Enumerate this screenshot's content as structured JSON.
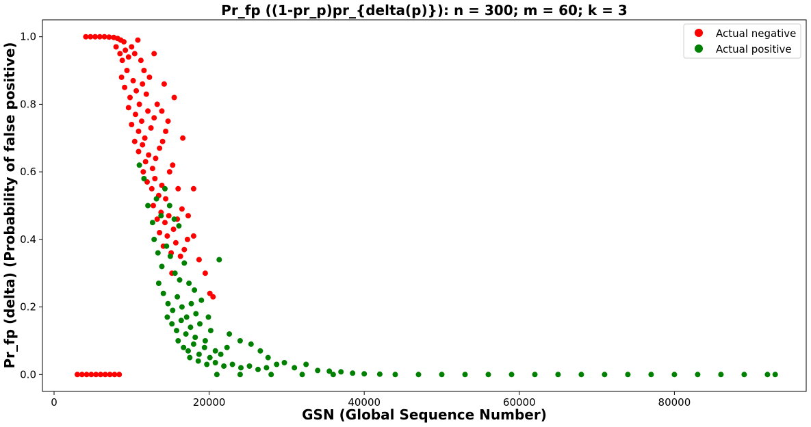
{
  "chart_data": {
    "type": "scatter",
    "title": "Pr_fp ((1-pr_p)pr_{delta(p)}): n = 300; m = 60; k = 3",
    "xlabel": "GSN (Global Sequence Number)",
    "ylabel": "Pr_fp (delta) (Probability of false positive)",
    "xlim": [
      -1500,
      97000
    ],
    "ylim": [
      -0.05,
      1.05
    ],
    "xticks": [
      0,
      20000,
      40000,
      60000,
      80000
    ],
    "xtick_labels": [
      "0",
      "20000",
      "40000",
      "60000",
      "80000"
    ],
    "yticks": [
      0.0,
      0.2,
      0.4,
      0.6,
      0.8,
      1.0
    ],
    "ytick_labels": [
      "0.0",
      "0.2",
      "0.4",
      "0.6",
      "0.8",
      "1.0"
    ],
    "grid": false,
    "legend_position": "top-right",
    "series": [
      {
        "name": "Actual negative",
        "color": "#ff0000",
        "values": [
          [
            3000,
            0.0
          ],
          [
            3600,
            0.0
          ],
          [
            4200,
            0.0
          ],
          [
            4800,
            0.0
          ],
          [
            5400,
            0.0
          ],
          [
            6000,
            0.0
          ],
          [
            6600,
            0.0
          ],
          [
            7200,
            0.0
          ],
          [
            7800,
            0.0
          ],
          [
            8400,
            0.0
          ],
          [
            4100,
            1.0
          ],
          [
            4700,
            1.0
          ],
          [
            5300,
            1.0
          ],
          [
            5900,
            1.0
          ],
          [
            6500,
            1.0
          ],
          [
            7100,
            0.999
          ],
          [
            7700,
            0.998
          ],
          [
            8200,
            0.995
          ],
          [
            8600,
            0.99
          ],
          [
            9000,
            0.985
          ],
          [
            8000,
            0.97
          ],
          [
            8500,
            0.95
          ],
          [
            8800,
            0.93
          ],
          [
            9200,
            0.96
          ],
          [
            9600,
            0.94
          ],
          [
            10000,
            0.97
          ],
          [
            10400,
            0.95
          ],
          [
            10800,
            0.99
          ],
          [
            11200,
            0.93
          ],
          [
            11600,
            0.9
          ],
          [
            8700,
            0.88
          ],
          [
            9100,
            0.85
          ],
          [
            9400,
            0.9
          ],
          [
            9800,
            0.82
          ],
          [
            10200,
            0.87
          ],
          [
            10600,
            0.84
          ],
          [
            11000,
            0.8
          ],
          [
            11400,
            0.86
          ],
          [
            11900,
            0.83
          ],
          [
            12300,
            0.88
          ],
          [
            9600,
            0.79
          ],
          [
            10000,
            0.74
          ],
          [
            10500,
            0.77
          ],
          [
            10900,
            0.72
          ],
          [
            11300,
            0.75
          ],
          [
            11700,
            0.7
          ],
          [
            12100,
            0.78
          ],
          [
            12500,
            0.73
          ],
          [
            12900,
            0.76
          ],
          [
            13300,
            0.8
          ],
          [
            10400,
            0.69
          ],
          [
            10900,
            0.66
          ],
          [
            11400,
            0.68
          ],
          [
            11800,
            0.63
          ],
          [
            12200,
            0.65
          ],
          [
            12700,
            0.61
          ],
          [
            13100,
            0.64
          ],
          [
            13600,
            0.67
          ],
          [
            14000,
            0.69
          ],
          [
            14400,
            0.72
          ],
          [
            11500,
            0.6
          ],
          [
            12000,
            0.57
          ],
          [
            12600,
            0.55
          ],
          [
            13000,
            0.58
          ],
          [
            13500,
            0.53
          ],
          [
            13900,
            0.56
          ],
          [
            14400,
            0.52
          ],
          [
            14900,
            0.6
          ],
          [
            15300,
            0.62
          ],
          [
            16000,
            0.55
          ],
          [
            12800,
            0.5
          ],
          [
            13300,
            0.46
          ],
          [
            13800,
            0.48
          ],
          [
            14300,
            0.45
          ],
          [
            14800,
            0.47
          ],
          [
            15400,
            0.43
          ],
          [
            15900,
            0.46
          ],
          [
            16500,
            0.49
          ],
          [
            17300,
            0.47
          ],
          [
            18000,
            0.55
          ],
          [
            13600,
            0.42
          ],
          [
            14100,
            0.38
          ],
          [
            14600,
            0.41
          ],
          [
            15100,
            0.36
          ],
          [
            15700,
            0.39
          ],
          [
            16300,
            0.35
          ],
          [
            17200,
            0.4
          ],
          [
            18000,
            0.41
          ],
          [
            18700,
            0.34
          ],
          [
            19500,
            0.3
          ],
          [
            15200,
            0.3
          ],
          [
            16800,
            0.37
          ],
          [
            20100,
            0.24
          ],
          [
            20500,
            0.23
          ],
          [
            12900,
            0.95
          ],
          [
            14200,
            0.86
          ],
          [
            15500,
            0.82
          ],
          [
            16600,
            0.7
          ],
          [
            14700,
            0.75
          ],
          [
            13900,
            0.78
          ]
        ]
      },
      {
        "name": "Actual positive",
        "color": "#008000",
        "values": [
          [
            11000,
            0.62
          ],
          [
            11600,
            0.58
          ],
          [
            12100,
            0.5
          ],
          [
            12700,
            0.45
          ],
          [
            13200,
            0.52
          ],
          [
            13800,
            0.47
          ],
          [
            14300,
            0.55
          ],
          [
            14900,
            0.5
          ],
          [
            15500,
            0.46
          ],
          [
            16100,
            0.44
          ],
          [
            12900,
            0.4
          ],
          [
            13400,
            0.36
          ],
          [
            13900,
            0.32
          ],
          [
            14500,
            0.38
          ],
          [
            15000,
            0.35
          ],
          [
            15600,
            0.3
          ],
          [
            16200,
            0.28
          ],
          [
            16800,
            0.33
          ],
          [
            17400,
            0.27
          ],
          [
            18100,
            0.25
          ],
          [
            13500,
            0.27
          ],
          [
            14100,
            0.24
          ],
          [
            14700,
            0.21
          ],
          [
            15300,
            0.19
          ],
          [
            15900,
            0.23
          ],
          [
            16500,
            0.2
          ],
          [
            17100,
            0.17
          ],
          [
            17700,
            0.21
          ],
          [
            18300,
            0.18
          ],
          [
            19000,
            0.22
          ],
          [
            14600,
            0.17
          ],
          [
            15200,
            0.15
          ],
          [
            15800,
            0.13
          ],
          [
            16400,
            0.16
          ],
          [
            17000,
            0.12
          ],
          [
            17600,
            0.14
          ],
          [
            18200,
            0.11
          ],
          [
            18800,
            0.15
          ],
          [
            19500,
            0.1
          ],
          [
            20200,
            0.13
          ],
          [
            16000,
            0.1
          ],
          [
            16700,
            0.08
          ],
          [
            17300,
            0.07
          ],
          [
            18000,
            0.09
          ],
          [
            18700,
            0.06
          ],
          [
            19400,
            0.08
          ],
          [
            20100,
            0.05
          ],
          [
            20800,
            0.07
          ],
          [
            21500,
            0.06
          ],
          [
            22300,
            0.08
          ],
          [
            17500,
            0.05
          ],
          [
            18600,
            0.04
          ],
          [
            19700,
            0.03
          ],
          [
            20800,
            0.035
          ],
          [
            21900,
            0.025
          ],
          [
            23000,
            0.03
          ],
          [
            24100,
            0.02
          ],
          [
            25200,
            0.025
          ],
          [
            26300,
            0.015
          ],
          [
            27400,
            0.02
          ],
          [
            19900,
            0.17
          ],
          [
            21300,
            0.34
          ],
          [
            22600,
            0.12
          ],
          [
            24000,
            0.1
          ],
          [
            25400,
            0.09
          ],
          [
            26600,
            0.07
          ],
          [
            27600,
            0.05
          ],
          [
            28700,
            0.03
          ],
          [
            29700,
            0.035
          ],
          [
            31000,
            0.02
          ],
          [
            32500,
            0.03
          ],
          [
            34000,
            0.012
          ],
          [
            35500,
            0.01
          ],
          [
            37000,
            0.008
          ],
          [
            38500,
            0.004
          ],
          [
            40000,
            0.002
          ],
          [
            42000,
            0.001
          ],
          [
            44000,
            0.0
          ],
          [
            47000,
            0.0
          ],
          [
            50000,
            0.0
          ],
          [
            53000,
            0.0
          ],
          [
            56000,
            0.0
          ],
          [
            59000,
            0.0
          ],
          [
            62000,
            0.0
          ],
          [
            65000,
            0.0
          ],
          [
            68000,
            0.0
          ],
          [
            71000,
            0.0
          ],
          [
            74000,
            0.0
          ],
          [
            77000,
            0.0
          ],
          [
            80000,
            0.0
          ],
          [
            83000,
            0.0
          ],
          [
            86000,
            0.0
          ],
          [
            89000,
            0.0
          ],
          [
            92000,
            0.0
          ],
          [
            93000,
            0.0
          ],
          [
            21000,
            0.0
          ],
          [
            24000,
            0.0
          ],
          [
            28000,
            0.0
          ],
          [
            32000,
            0.0
          ],
          [
            36000,
            0.0
          ]
        ]
      }
    ]
  }
}
